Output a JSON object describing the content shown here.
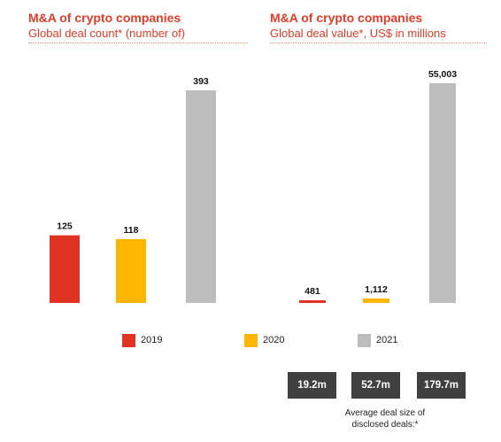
{
  "colors": {
    "accent": "#e03c28",
    "2019": "#e03323",
    "2020": "#ffb600",
    "2021": "#bdbdbd",
    "avg_box": "#404040"
  },
  "legend": [
    {
      "label": "2019",
      "color": "#e03323"
    },
    {
      "label": "2020",
      "color": "#ffb600"
    },
    {
      "label": "2021",
      "color": "#bdbdbd"
    }
  ],
  "chart_data": [
    {
      "type": "bar",
      "title": "M&A of crypto companies",
      "subtitle": "Global deal count* (number of)",
      "categories": [
        "2019",
        "2020",
        "2021"
      ],
      "values": [
        125,
        118,
        393
      ],
      "value_labels": [
        "125",
        "118",
        "393"
      ],
      "colors": [
        "#e03323",
        "#ffb600",
        "#bdbdbd"
      ],
      "ylim": [
        0,
        393
      ],
      "grid": false
    },
    {
      "type": "bar",
      "title": "M&A of crypto companies",
      "subtitle": "Global deal value*, US$ in millions",
      "categories": [
        "2019",
        "2020",
        "2021"
      ],
      "values": [
        481,
        1112,
        55003
      ],
      "value_labels": [
        "481",
        "1,112",
        "55,003"
      ],
      "colors": [
        "#e03323",
        "#ffb600",
        "#bdbdbd"
      ],
      "ylim": [
        0,
        55003
      ],
      "grid": false
    }
  ],
  "average_deal_size": {
    "values": [
      "19.2m",
      "52.7m",
      "179.7m"
    ],
    "caption_line1": "Average deal size of",
    "caption_line2": "disclosed deals:*"
  }
}
